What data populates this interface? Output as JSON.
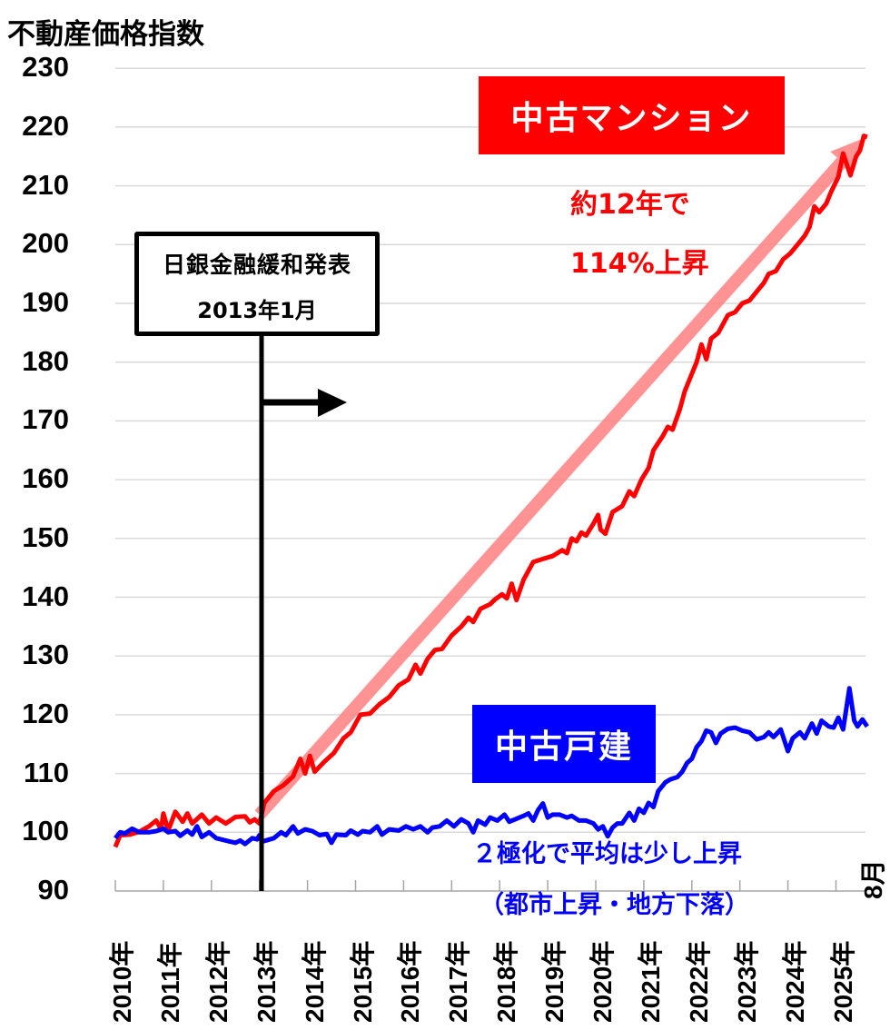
{
  "chart_data": {
    "type": "line",
    "title": "",
    "ylabel": "不動産価格指数",
    "xlabel": "",
    "ylim": [
      90,
      230
    ],
    "yticks": [
      90,
      100,
      110,
      120,
      130,
      140,
      150,
      160,
      170,
      180,
      190,
      200,
      210,
      220,
      230
    ],
    "categories": [
      "2010年",
      "2011年",
      "2012年",
      "2013年",
      "2014年",
      "2015年",
      "2016年",
      "2017年",
      "2018年",
      "2019年",
      "2020年",
      "2021年",
      "2022年",
      "2023年",
      "2024年",
      "2025年"
    ],
    "x_end_label": "8月",
    "grid": true,
    "series": [
      {
        "name": "中古マンション",
        "color": "#ff0000",
        "points": [
          [
            2010.0,
            97.5
          ],
          [
            2010.1,
            99.5
          ],
          [
            2010.3,
            99.6
          ],
          [
            2010.5,
            100.1
          ],
          [
            2010.7,
            101.0
          ],
          [
            2010.85,
            102.0
          ],
          [
            2010.95,
            100.5
          ],
          [
            2011.0,
            103.2
          ],
          [
            2011.1,
            100.3
          ],
          [
            2011.25,
            103.5
          ],
          [
            2011.4,
            101.8
          ],
          [
            2011.5,
            103.2
          ],
          [
            2011.6,
            101.5
          ],
          [
            2011.8,
            103.0
          ],
          [
            2011.95,
            101.5
          ],
          [
            2012.1,
            102.5
          ],
          [
            2012.3,
            101.5
          ],
          [
            2012.5,
            102.6
          ],
          [
            2012.7,
            102.7
          ],
          [
            2012.8,
            101.7
          ],
          [
            2012.9,
            102.2
          ],
          [
            2013.0,
            101.5
          ],
          [
            2013.1,
            105.0
          ],
          [
            2013.3,
            107.0
          ],
          [
            2013.5,
            108.0
          ],
          [
            2013.7,
            109.5
          ],
          [
            2013.85,
            112.5
          ],
          [
            2013.95,
            110.0
          ],
          [
            2014.05,
            113.0
          ],
          [
            2014.15,
            110.3
          ],
          [
            2014.35,
            112.0
          ],
          [
            2014.55,
            113.5
          ],
          [
            2014.75,
            116.0
          ],
          [
            2014.9,
            117.0
          ],
          [
            2015.1,
            120.0
          ],
          [
            2015.3,
            120.2
          ],
          [
            2015.5,
            121.8
          ],
          [
            2015.7,
            123.0
          ],
          [
            2015.9,
            125.0
          ],
          [
            2016.1,
            126.0
          ],
          [
            2016.25,
            128.5
          ],
          [
            2016.35,
            127.0
          ],
          [
            2016.5,
            129.5
          ],
          [
            2016.65,
            131.0
          ],
          [
            2016.8,
            131.2
          ],
          [
            2017.0,
            133.5
          ],
          [
            2017.2,
            135.0
          ],
          [
            2017.35,
            136.5
          ],
          [
            2017.45,
            135.8
          ],
          [
            2017.6,
            138.0
          ],
          [
            2017.8,
            138.8
          ],
          [
            2017.9,
            139.6
          ],
          [
            2018.05,
            140.5
          ],
          [
            2018.15,
            139.8
          ],
          [
            2018.25,
            142.3
          ],
          [
            2018.35,
            139.5
          ],
          [
            2018.5,
            143.0
          ],
          [
            2018.7,
            146.0
          ],
          [
            2018.9,
            146.5
          ],
          [
            2019.1,
            147.0
          ],
          [
            2019.3,
            148.0
          ],
          [
            2019.4,
            147.5
          ],
          [
            2019.5,
            150.0
          ],
          [
            2019.6,
            149.5
          ],
          [
            2019.7,
            151.0
          ],
          [
            2019.8,
            150.5
          ],
          [
            2019.95,
            152.5
          ],
          [
            2020.05,
            154.0
          ],
          [
            2020.1,
            151.5
          ],
          [
            2020.2,
            150.8
          ],
          [
            2020.35,
            154.5
          ],
          [
            2020.55,
            155.5
          ],
          [
            2020.7,
            158.0
          ],
          [
            2020.8,
            157.2
          ],
          [
            2020.95,
            160.0
          ],
          [
            2021.1,
            162.0
          ],
          [
            2021.2,
            165.0
          ],
          [
            2021.4,
            167.5
          ],
          [
            2021.5,
            169.0
          ],
          [
            2021.6,
            168.5
          ],
          [
            2021.75,
            172.0
          ],
          [
            2021.85,
            175.0
          ],
          [
            2022.0,
            178.0
          ],
          [
            2022.1,
            180.0
          ],
          [
            2022.2,
            183.0
          ],
          [
            2022.3,
            180.5
          ],
          [
            2022.4,
            184.0
          ],
          [
            2022.55,
            185.0
          ],
          [
            2022.75,
            188.0
          ],
          [
            2022.9,
            188.5
          ],
          [
            2023.05,
            190.0
          ],
          [
            2023.2,
            190.5
          ],
          [
            2023.4,
            192.5
          ],
          [
            2023.5,
            193.5
          ],
          [
            2023.6,
            195.0
          ],
          [
            2023.75,
            195.5
          ],
          [
            2023.9,
            197.5
          ],
          [
            2024.05,
            198.5
          ],
          [
            2024.2,
            200.0
          ],
          [
            2024.35,
            201.5
          ],
          [
            2024.45,
            203.0
          ],
          [
            2024.55,
            206.5
          ],
          [
            2024.65,
            205.5
          ],
          [
            2024.8,
            207.0
          ],
          [
            2024.9,
            209.0
          ],
          [
            2025.05,
            211.5
          ],
          [
            2025.15,
            215.5
          ],
          [
            2025.3,
            211.8
          ],
          [
            2025.42,
            215.0
          ],
          [
            2025.5,
            216.0
          ],
          [
            2025.58,
            218.5
          ],
          [
            2025.65,
            218.3
          ]
        ]
      },
      {
        "name": "中古戸建",
        "color": "#0000ff",
        "points": [
          [
            2010.0,
            99.0
          ],
          [
            2010.1,
            100.0
          ],
          [
            2010.2,
            99.8
          ],
          [
            2010.35,
            100.6
          ],
          [
            2010.5,
            100.0
          ],
          [
            2010.7,
            100.0
          ],
          [
            2010.85,
            100.2
          ],
          [
            2011.0,
            100.6
          ],
          [
            2011.1,
            100.0
          ],
          [
            2011.25,
            100.2
          ],
          [
            2011.35,
            99.4
          ],
          [
            2011.5,
            100.3
          ],
          [
            2011.6,
            99.6
          ],
          [
            2011.7,
            101.0
          ],
          [
            2011.8,
            99.2
          ],
          [
            2011.95,
            100.0
          ],
          [
            2012.1,
            99.0
          ],
          [
            2012.3,
            98.6
          ],
          [
            2012.5,
            98.2
          ],
          [
            2012.6,
            98.6
          ],
          [
            2012.7,
            98.0
          ],
          [
            2012.85,
            99.0
          ],
          [
            2012.95,
            98.8
          ],
          [
            2013.0,
            99.5
          ],
          [
            2013.05,
            98.4
          ],
          [
            2013.3,
            99.0
          ],
          [
            2013.45,
            100.0
          ],
          [
            2013.55,
            99.5
          ],
          [
            2013.7,
            101.0
          ],
          [
            2013.8,
            99.8
          ],
          [
            2013.95,
            100.5
          ],
          [
            2014.1,
            100.2
          ],
          [
            2014.25,
            99.5
          ],
          [
            2014.4,
            99.7
          ],
          [
            2014.5,
            98.2
          ],
          [
            2014.6,
            99.6
          ],
          [
            2014.8,
            99.5
          ],
          [
            2014.9,
            100.3
          ],
          [
            2015.05,
            99.6
          ],
          [
            2015.15,
            100.2
          ],
          [
            2015.3,
            100.0
          ],
          [
            2015.45,
            101.0
          ],
          [
            2015.55,
            99.6
          ],
          [
            2015.7,
            100.5
          ],
          [
            2015.9,
            100.3
          ],
          [
            2016.05,
            101.0
          ],
          [
            2016.2,
            100.5
          ],
          [
            2016.35,
            101.0
          ],
          [
            2016.5,
            100.0
          ],
          [
            2016.6,
            100.8
          ],
          [
            2016.75,
            101.0
          ],
          [
            2016.9,
            102.0
          ],
          [
            2017.05,
            101.0
          ],
          [
            2017.2,
            102.2
          ],
          [
            2017.35,
            101.5
          ],
          [
            2017.45,
            100.0
          ],
          [
            2017.55,
            102.0
          ],
          [
            2017.7,
            101.3
          ],
          [
            2017.8,
            102.5
          ],
          [
            2017.95,
            102.0
          ],
          [
            2018.1,
            103.0
          ],
          [
            2018.2,
            101.8
          ],
          [
            2018.35,
            102.3
          ],
          [
            2018.5,
            102.8
          ],
          [
            2018.6,
            103.2
          ],
          [
            2018.7,
            102.0
          ],
          [
            2018.8,
            103.8
          ],
          [
            2018.9,
            104.9
          ],
          [
            2019.0,
            102.5
          ],
          [
            2019.1,
            103.0
          ],
          [
            2019.25,
            103.0
          ],
          [
            2019.4,
            102.5
          ],
          [
            2019.5,
            102.8
          ],
          [
            2019.65,
            102.0
          ],
          [
            2019.8,
            102.0
          ],
          [
            2019.95,
            101.5
          ],
          [
            2020.05,
            100.5
          ],
          [
            2020.15,
            101.0
          ],
          [
            2020.25,
            99.3
          ],
          [
            2020.35,
            100.8
          ],
          [
            2020.45,
            101.5
          ],
          [
            2020.55,
            101.5
          ],
          [
            2020.7,
            103.3
          ],
          [
            2020.8,
            102.0
          ],
          [
            2020.9,
            104.0
          ],
          [
            2021.0,
            103.3
          ],
          [
            2021.1,
            105.0
          ],
          [
            2021.2,
            104.3
          ],
          [
            2021.3,
            107.0
          ],
          [
            2021.45,
            108.5
          ],
          [
            2021.55,
            109.0
          ],
          [
            2021.7,
            109.4
          ],
          [
            2021.8,
            110.3
          ],
          [
            2021.9,
            111.8
          ],
          [
            2022.0,
            112.5
          ],
          [
            2022.1,
            114.5
          ],
          [
            2022.2,
            115.5
          ],
          [
            2022.3,
            117.3
          ],
          [
            2022.4,
            117.0
          ],
          [
            2022.5,
            115.2
          ],
          [
            2022.6,
            116.8
          ],
          [
            2022.75,
            117.6
          ],
          [
            2022.9,
            117.8
          ],
          [
            2023.05,
            117.3
          ],
          [
            2023.2,
            117.0
          ],
          [
            2023.35,
            115.8
          ],
          [
            2023.5,
            116.2
          ],
          [
            2023.6,
            117.0
          ],
          [
            2023.7,
            116.2
          ],
          [
            2023.85,
            117.5
          ],
          [
            2024.0,
            113.8
          ],
          [
            2024.1,
            116.0
          ],
          [
            2024.25,
            117.0
          ],
          [
            2024.35,
            116.0
          ],
          [
            2024.5,
            118.5
          ],
          [
            2024.6,
            116.8
          ],
          [
            2024.7,
            119.0
          ],
          [
            2024.85,
            118.0
          ],
          [
            2024.95,
            117.8
          ],
          [
            2025.05,
            119.5
          ],
          [
            2025.15,
            117.5
          ],
          [
            2025.28,
            124.5
          ],
          [
            2025.38,
            119.0
          ],
          [
            2025.45,
            118.0
          ],
          [
            2025.55,
            119.2
          ],
          [
            2025.65,
            118.0
          ]
        ]
      }
    ],
    "trend_arrow": {
      "from": [
        2013.0,
        103.0
      ],
      "to": [
        2025.55,
        218.0
      ],
      "color": "#ff8080"
    },
    "annotations": [
      {
        "text": "日銀金融緩和発表",
        "x": 2013.0
      },
      {
        "text": "2013年1月",
        "x": 2013.0
      },
      {
        "text": "中古マンション"
      },
      {
        "text": "約12年で"
      },
      {
        "text": "114%上昇"
      },
      {
        "text": "中古戸建"
      },
      {
        "text": "２極化で平均は少し上昇"
      },
      {
        "text": "（都市上昇・地方下落）"
      }
    ]
  },
  "labels": {
    "y_axis_title": "不動産価格指数",
    "boj_line1": "日銀金融緩和発表",
    "boj_line2": "2013年1月",
    "mansion_box": "中古マンション",
    "mansion_note1": "約12年で",
    "mansion_note2": "114%上昇",
    "house_box": "中古戸建",
    "house_note1": "２極化で平均は少し上昇",
    "house_note2": "（都市上昇・地方下落）",
    "end_month": "8月"
  },
  "colors": {
    "mansion": "#ff0000",
    "house": "#0000ff",
    "trend": "#ff8080",
    "grid": "#d9d9d9",
    "axis": "#a6a6a6"
  }
}
